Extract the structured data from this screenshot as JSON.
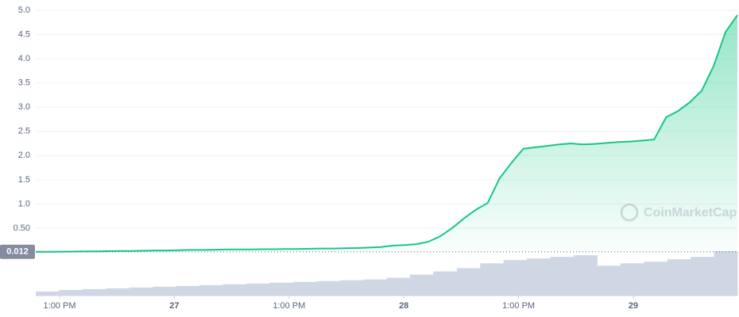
{
  "chart_data": {
    "type": "area",
    "series": [
      {
        "name": "Price",
        "color": "#16c784",
        "values": [
          0.012,
          0.013,
          0.015,
          0.017,
          0.02,
          0.02,
          0.025,
          0.03,
          0.03,
          0.035,
          0.04,
          0.04,
          0.045,
          0.05,
          0.05,
          0.055,
          0.06,
          0.06,
          0.06,
          0.065,
          0.065,
          0.07,
          0.07,
          0.075,
          0.08,
          0.08,
          0.085,
          0.09,
          0.1,
          0.11,
          0.14,
          0.15,
          0.17,
          0.22,
          0.33,
          0.5,
          0.7,
          0.88,
          1.02,
          1.53,
          1.85,
          2.14,
          2.17,
          2.2,
          2.23,
          2.25,
          2.23,
          2.24,
          2.26,
          2.28,
          2.29,
          2.31,
          2.33,
          2.79,
          2.92,
          3.1,
          3.34,
          3.85,
          4.55,
          4.9
        ]
      }
    ],
    "volume": {
      "color": "#cfd6e4",
      "values": [
        5,
        7,
        8,
        9,
        10,
        11,
        12,
        13,
        14,
        15,
        16,
        17,
        18,
        19,
        20,
        22,
        26,
        30,
        34,
        40,
        44,
        46,
        48,
        50,
        37,
        40,
        42,
        45,
        48,
        55
      ]
    },
    "ylim": [
      0,
      5
    ],
    "yticks": [
      {
        "value": 0.5,
        "label": "0.50"
      },
      {
        "value": 1,
        "label": "1.0"
      },
      1.5,
      {
        "value": 2,
        "label": "2.0"
      },
      2.5,
      {
        "value": 3,
        "label": "3.0"
      },
      3.5,
      {
        "value": 4,
        "label": "4.0"
      },
      4.5,
      {
        "value": 5,
        "label": "5.0"
      }
    ],
    "x_labels": [
      "1:00 PM",
      "27",
      "1:00 PM",
      "28",
      "1:00 PM",
      "29"
    ],
    "price_marker": 0.012,
    "watermark": "CoinMarketCap",
    "grid": true
  }
}
